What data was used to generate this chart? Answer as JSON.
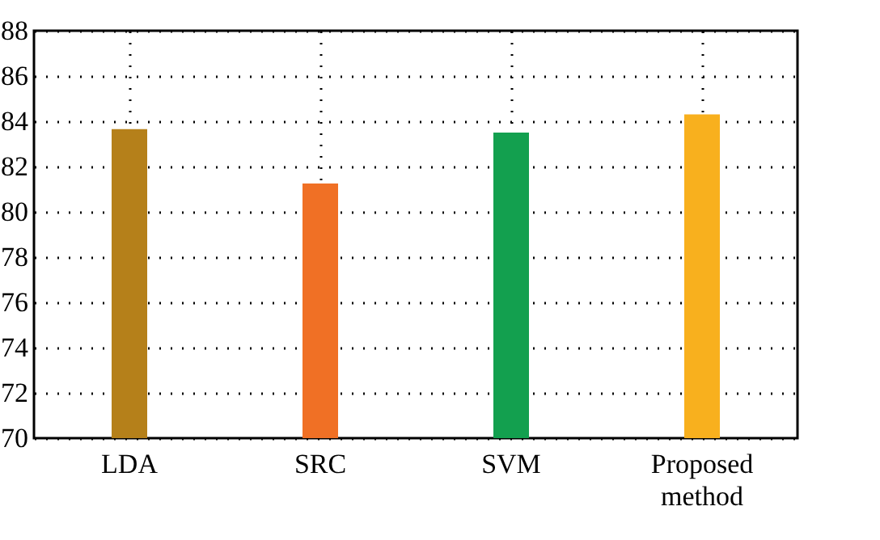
{
  "chart_data": {
    "type": "bar",
    "categories": [
      "LDA",
      "SRC",
      "SVM",
      "Proposed method"
    ],
    "values": [
      83.65,
      81.25,
      83.5,
      84.3
    ],
    "colors": [
      "#b5801a",
      "#f07025",
      "#13a04f",
      "#f8b01e"
    ],
    "ylim": [
      70,
      88
    ],
    "yticks": [
      70,
      72,
      74,
      76,
      78,
      80,
      82,
      84,
      86,
      88
    ],
    "grid": true
  }
}
